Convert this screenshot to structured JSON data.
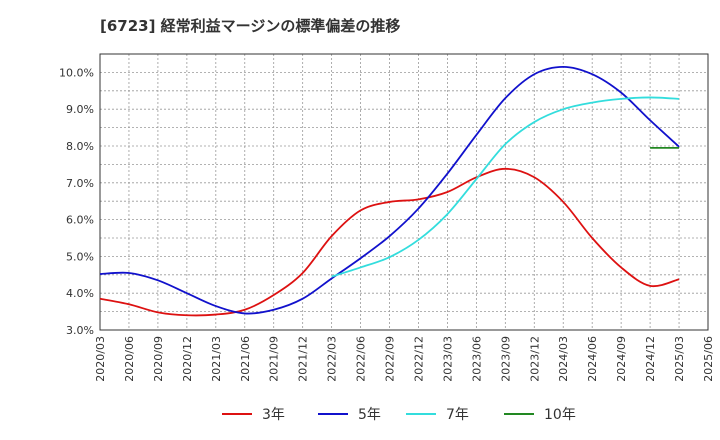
{
  "chart_data": {
    "type": "line",
    "title": "[6723]  経常利益マージンの標準偏差の推移",
    "xlabel": "",
    "ylabel": "",
    "ylim": [
      3.0,
      10.5
    ],
    "x_ticks": [
      "2020/03",
      "2020/06",
      "2020/09",
      "2020/12",
      "2021/03",
      "2021/06",
      "2021/09",
      "2021/12",
      "2022/03",
      "2022/06",
      "2022/09",
      "2022/12",
      "2023/03",
      "2023/06",
      "2023/09",
      "2023/12",
      "2024/03",
      "2024/06",
      "2024/09",
      "2024/12",
      "2025/03",
      "2025/06"
    ],
    "y_ticks": [
      "3.0%",
      "4.0%",
      "5.0%",
      "6.0%",
      "7.0%",
      "8.0%",
      "9.0%",
      "10.0%"
    ],
    "grid": true,
    "legend_position": "bottom",
    "series": [
      {
        "name": "3年",
        "color": "#dd1111",
        "x": [
          "2020/03",
          "2020/06",
          "2020/09",
          "2020/12",
          "2021/03",
          "2021/06",
          "2021/09",
          "2021/12",
          "2022/03",
          "2022/06",
          "2022/09",
          "2022/12",
          "2023/03",
          "2023/06",
          "2023/09",
          "2023/12",
          "2024/03",
          "2024/06",
          "2024/09",
          "2024/12",
          "2025/03"
        ],
        "values": [
          3.85,
          3.7,
          3.48,
          3.4,
          3.42,
          3.55,
          3.95,
          4.55,
          5.55,
          6.25,
          6.48,
          6.55,
          6.75,
          7.15,
          7.38,
          7.15,
          6.48,
          5.5,
          4.7,
          4.2,
          4.38
        ]
      },
      {
        "name": "5年",
        "color": "#1111cc",
        "x": [
          "2020/03",
          "2020/06",
          "2020/09",
          "2020/12",
          "2021/03",
          "2021/06",
          "2021/09",
          "2021/12",
          "2022/03",
          "2022/06",
          "2022/09",
          "2022/12",
          "2023/03",
          "2023/06",
          "2023/09",
          "2023/12",
          "2024/03",
          "2024/06",
          "2024/09",
          "2024/12",
          "2025/03"
        ],
        "values": [
          4.52,
          4.55,
          4.35,
          4.0,
          3.65,
          3.45,
          3.55,
          3.85,
          4.4,
          4.95,
          5.55,
          6.3,
          7.25,
          8.3,
          9.3,
          9.95,
          10.15,
          9.95,
          9.45,
          8.7,
          7.98
        ]
      },
      {
        "name": "7年",
        "color": "#33dddd",
        "x": [
          "2022/03",
          "2022/06",
          "2022/09",
          "2022/12",
          "2023/03",
          "2023/06",
          "2023/09",
          "2023/12",
          "2024/03",
          "2024/06",
          "2024/09",
          "2024/12",
          "2025/03"
        ],
        "values": [
          4.45,
          4.7,
          4.98,
          5.45,
          6.15,
          7.1,
          8.05,
          8.65,
          9.0,
          9.18,
          9.28,
          9.32,
          9.28
        ]
      },
      {
        "name": "10年",
        "color": "#228822",
        "x": [
          "2024/12",
          "2025/03"
        ],
        "values": [
          7.95,
          7.95
        ]
      }
    ]
  }
}
